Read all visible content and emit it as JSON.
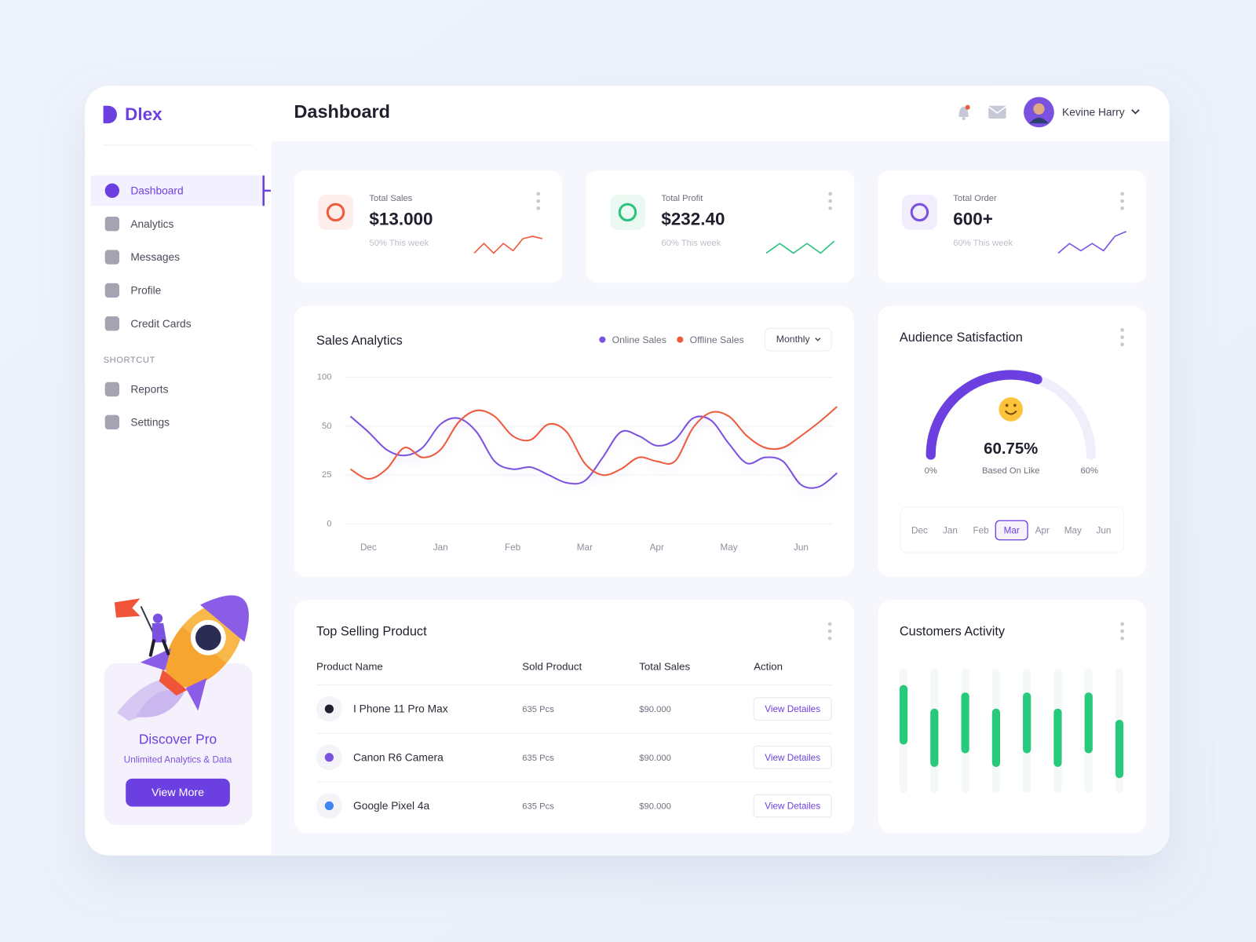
{
  "brand": "Dlex",
  "header": {
    "title": "Dashboard",
    "user": "Kevine Harry"
  },
  "sidebar": {
    "menu": [
      "Dashboard",
      "Analytics",
      "Messages",
      "Profile",
      "Credit Cards"
    ],
    "active": 0,
    "shortcut_title": "SHORTCUT",
    "shortcuts": [
      "Reports",
      "Settings"
    ]
  },
  "promo": {
    "title": "Discover Pro",
    "subtitle": "Unlimited Analytics & Data",
    "button": "View More"
  },
  "cards": [
    {
      "label": "Total Sales",
      "value": "$13.000",
      "note": "50% This week",
      "color": "#ee5b3e",
      "trend": [
        2,
        6,
        2,
        6,
        3,
        8,
        9,
        8
      ]
    },
    {
      "label": "Total Profit",
      "value": "$232.40",
      "note": "60% This week",
      "color": "#2ec27e",
      "trend": [
        2,
        6,
        2,
        6,
        2,
        7
      ]
    },
    {
      "label": "Total Order",
      "value": "600+",
      "note": "60% This week",
      "color": "#7b52e0",
      "trend": [
        2,
        6,
        3,
        6,
        3,
        9,
        11
      ]
    }
  ],
  "trend_ylim": [
    0,
    12
  ],
  "chart_data": [
    {
      "type": "line",
      "title": "Sales Analytics",
      "filter": "Monthly",
      "x": [
        -0.25,
        0,
        0.25,
        0.5,
        0.75,
        1,
        1.25,
        1.5,
        1.75,
        2,
        2.25,
        2.5,
        2.75,
        3,
        3.25,
        3.5,
        3.75,
        4,
        4.25,
        4.5,
        4.75,
        5,
        5.25,
        5.5,
        5.75,
        6,
        6.25,
        6.5
      ],
      "xlim": [
        -0.25,
        6.5
      ],
      "xticks": [
        {
          "value": 0,
          "label": "Dec"
        },
        {
          "value": 1,
          "label": "Jan"
        },
        {
          "value": 2,
          "label": "Feb"
        },
        {
          "value": 3,
          "label": "Mar"
        },
        {
          "value": 4,
          "label": "Apr"
        },
        {
          "value": 5,
          "label": "May"
        },
        {
          "value": 6,
          "label": "Jun"
        }
      ],
      "ylim": [
        0,
        100
      ],
      "yticks": [
        0,
        25,
        50,
        100
      ],
      "grid": true,
      "series": [
        {
          "name": "Online Sales",
          "color": "#7b52e0",
          "values": [
            60,
            47,
            38,
            35,
            39,
            52,
            58,
            47,
            32,
            28,
            29,
            25,
            21,
            22,
            34,
            47,
            45,
            40,
            43,
            58,
            56,
            41,
            31,
            34,
            32,
            20,
            19,
            26
          ]
        },
        {
          "name": "Offline Sales",
          "color": "#ee5b3e",
          "values": [
            28,
            23,
            28,
            39,
            34,
            38,
            54,
            66,
            60,
            45,
            43,
            52,
            47,
            31,
            25,
            28,
            34,
            32,
            32,
            49,
            64,
            60,
            45,
            39,
            39,
            45,
            54,
            70
          ]
        }
      ]
    },
    {
      "type": "gauge",
      "title": "Audience Satisfaction",
      "value": 60.75,
      "value_label": "60.75%",
      "caption": "Based On Like",
      "min_label": "0%",
      "max_label": "60%",
      "ylim": [
        0,
        100
      ],
      "color": "#6c3fe0",
      "months": [
        "Dec",
        "Jan",
        "Feb",
        "Mar",
        "Apr",
        "May",
        "Jun"
      ],
      "selected": 3
    },
    {
      "type": "range_bar",
      "title": "Customers Activity",
      "low": [
        39,
        21,
        32,
        21,
        32,
        21,
        32,
        12
      ],
      "high": [
        87,
        68,
        81,
        68,
        81,
        68,
        81,
        59
      ],
      "ylim": [
        0,
        100
      ],
      "color": "#27c97a"
    }
  ],
  "top_products": {
    "title": "Top Selling Product",
    "columns": [
      "Product Name",
      "Sold Product",
      "Total Sales",
      "Action"
    ],
    "rows": [
      [
        "I Phone 11 Pro Max",
        "635 Pcs",
        "$90.000",
        "View Detailes"
      ],
      [
        "Canon R6 Camera",
        "635 Pcs",
        "$90.000",
        "View Detailes"
      ],
      [
        "Google Pixel 4a",
        "635 Pcs",
        "$90.000",
        "View Detailes"
      ]
    ]
  }
}
